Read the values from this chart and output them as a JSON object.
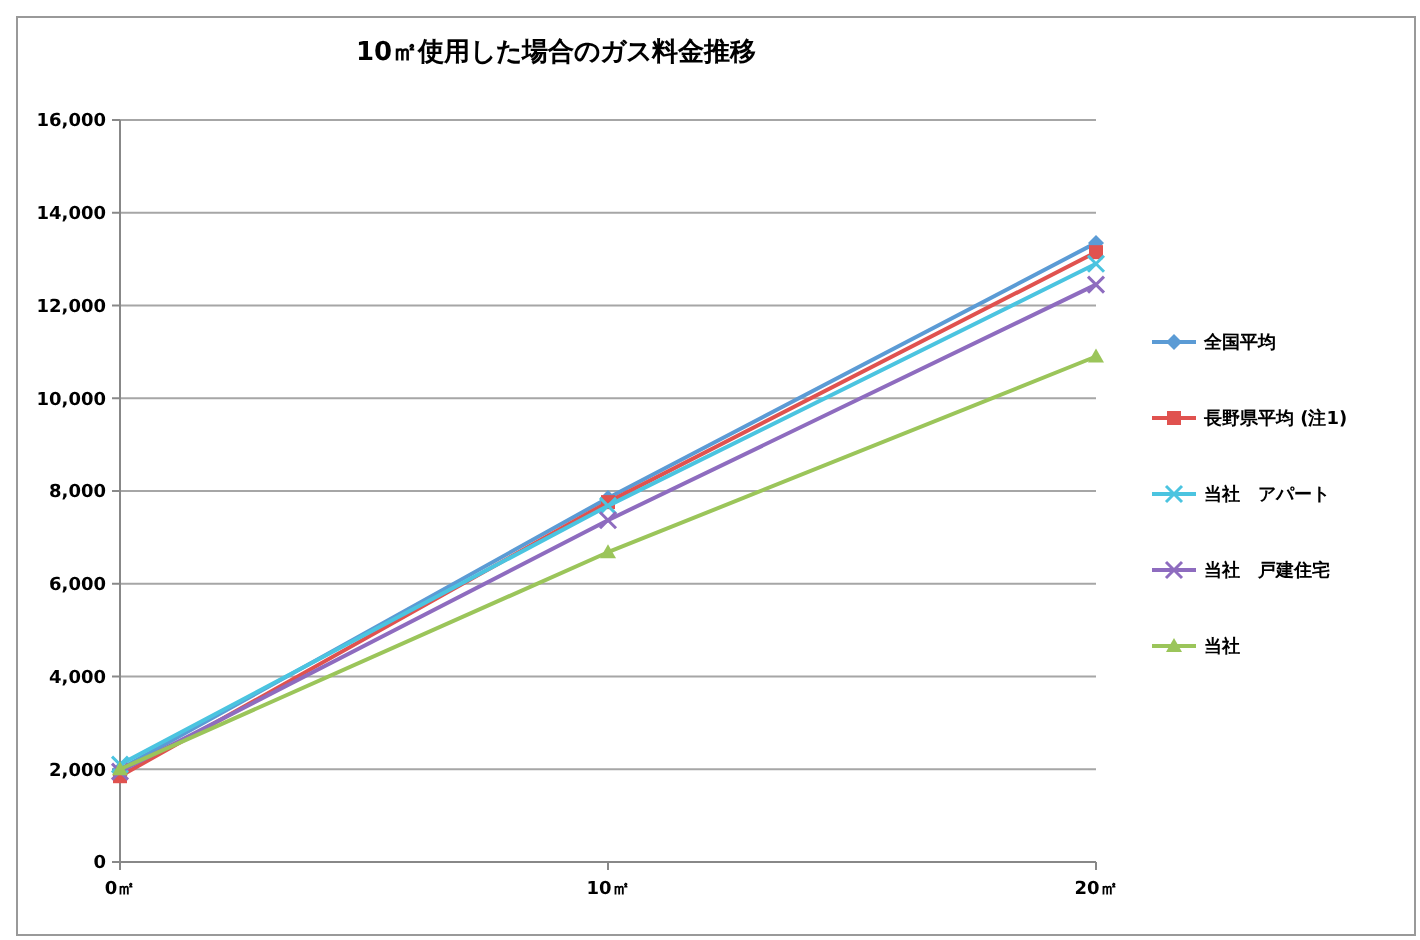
{
  "chart_data": {
    "type": "line",
    "title": "10㎡使用した場合のガス料金推移",
    "categories": [
      "0㎡",
      "10㎡",
      "20㎡"
    ],
    "ylim": [
      0,
      16000
    ],
    "yticks": [
      {
        "value": 0,
        "label": "0"
      },
      {
        "value": 2000,
        "label": "2,000"
      },
      {
        "value": 4000,
        "label": "4,000"
      },
      {
        "value": 6000,
        "label": "6,000"
      },
      {
        "value": 8000,
        "label": "8,000"
      },
      {
        "value": 10000,
        "label": "10,000"
      },
      {
        "value": 12000,
        "label": "12,000"
      },
      {
        "value": 14000,
        "label": "14,000"
      },
      {
        "value": 16000,
        "label": "16,000"
      }
    ],
    "grid": "y",
    "legend": "right",
    "series": [
      {
        "name": "全国平均",
        "color": "#5b9bd5",
        "marker": "diamond",
        "values": [
          2000,
          7850,
          13350
        ]
      },
      {
        "name": "長野県平均 (注1)",
        "color": "#e0524f",
        "marker": "square",
        "values": [
          1850,
          7760,
          13150
        ]
      },
      {
        "name": "当社　アパート",
        "color": "#4bc4e0",
        "marker": "cross",
        "values": [
          2100,
          7680,
          12900
        ]
      },
      {
        "name": "当社　戸建住宅",
        "color": "#8e6cbf",
        "marker": "cross",
        "values": [
          1950,
          7370,
          12450
        ]
      },
      {
        "name": "当社",
        "color": "#9bc55a",
        "marker": "triangle",
        "values": [
          2000,
          6680,
          10900
        ]
      }
    ]
  }
}
